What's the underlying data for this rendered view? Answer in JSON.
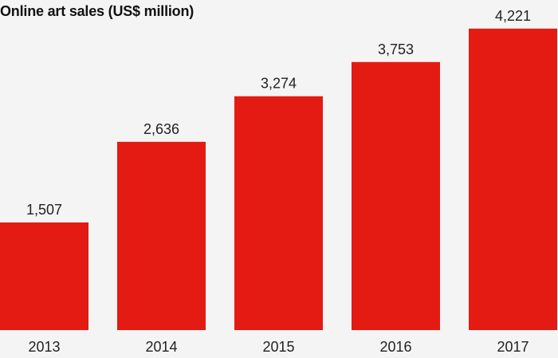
{
  "chart_data": {
    "type": "bar",
    "title": "Online art sales (US$ million)",
    "categories": [
      "2013",
      "2014",
      "2015",
      "2016",
      "2017"
    ],
    "values": [
      1507,
      2636,
      3274,
      3753,
      4221
    ],
    "value_labels": [
      "1,507",
      "2,636",
      "3,274",
      "3,753",
      "4,221"
    ],
    "xlabel": "",
    "ylabel": "",
    "ylim": [
      0,
      4500
    ],
    "grid": false,
    "legend": "none",
    "bar_color": "#e31b13",
    "background_color": "#f4f4f4",
    "text_color": "#222222"
  }
}
